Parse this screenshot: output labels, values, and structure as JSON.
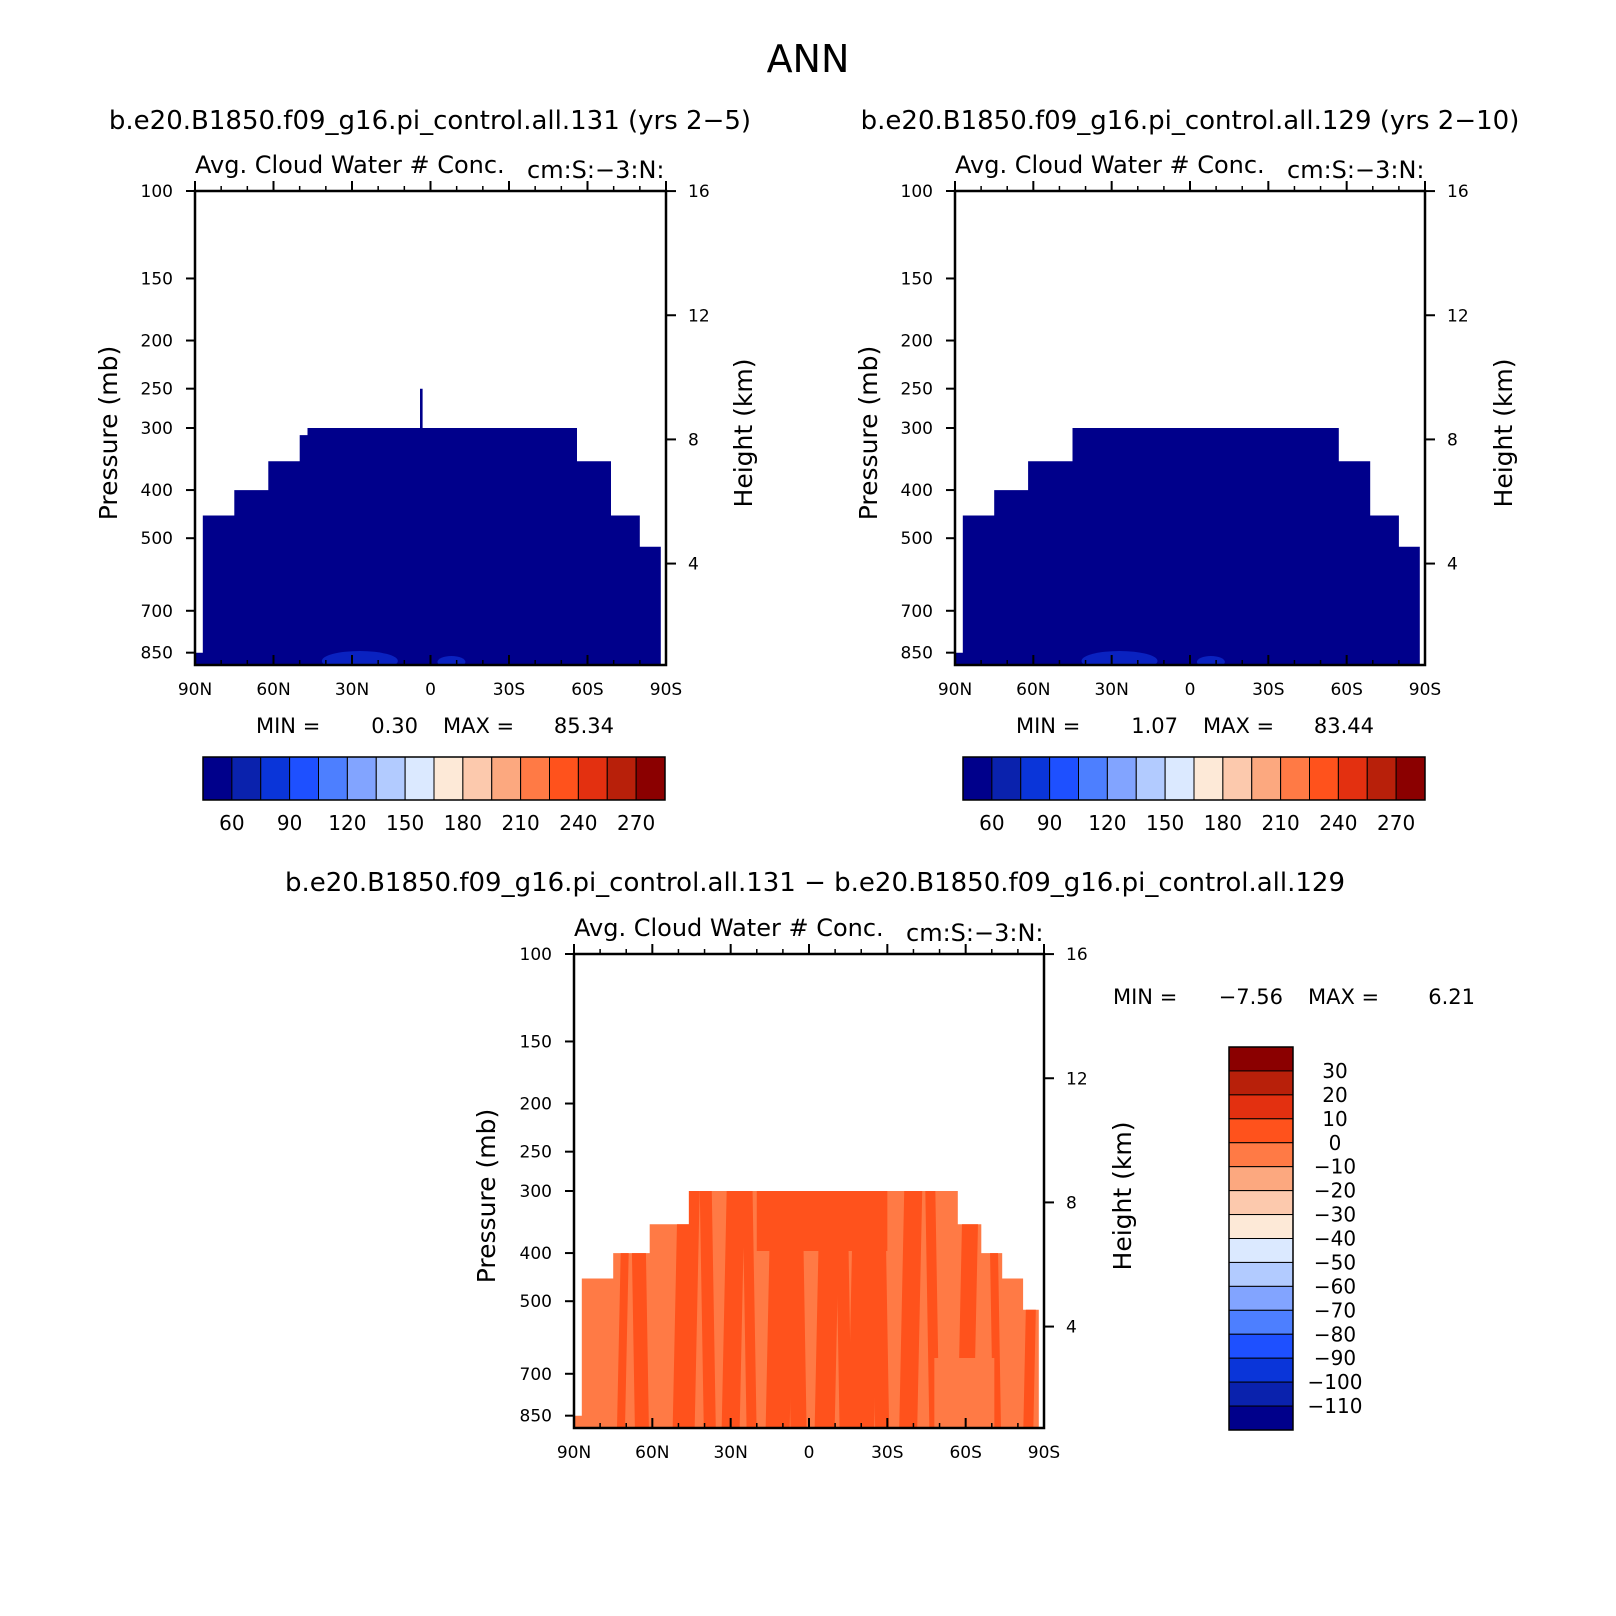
{
  "figure_title": "ANN",
  "colors": {
    "field": "#00008b",
    "field_light": "#0a22c0",
    "diff_base": "#ff7a45",
    "diff_strong": "#ff521c",
    "axis": "#000000"
  },
  "chart_data": [
    {
      "type": "heatmap",
      "case_title": "b.e20.B1850.f09_g16.pi_control.all.131 (yrs 2-5)",
      "title": "Avg. Cloud Water # Conc.",
      "units_label": "cm:S:-3:N:",
      "xlabel": "",
      "ylabel": "Pressure (mb)",
      "ylabel_right": "Height (km)",
      "x_ticks": [
        "90N",
        "60N",
        "30N",
        "0",
        "30S",
        "60S",
        "90S"
      ],
      "y_ticks": [
        "100",
        "150",
        "200",
        "250",
        "300",
        "400",
        "500",
        "700",
        "850"
      ],
      "y_ticks_right": [
        "16",
        "12",
        "8",
        "4"
      ],
      "ylim": [
        1000,
        100
      ],
      "xlim": [
        90,
        -90
      ],
      "min_label": "MIN =",
      "min_value": "0.30",
      "max_label": "MAX =",
      "max_value": "85.34",
      "field_top_pressure": [
        [
          90,
          850
        ],
        [
          87,
          450
        ],
        [
          75,
          400
        ],
        [
          62,
          350
        ],
        [
          50,
          310
        ],
        [
          47,
          300
        ],
        [
          45,
          300
        ],
        [
          5,
          300
        ],
        [
          4,
          250
        ],
        [
          3,
          300
        ],
        [
          -45,
          300
        ],
        [
          -56,
          350
        ],
        [
          -69,
          450
        ],
        [
          -80,
          520
        ],
        [
          -88,
          850
        ]
      ],
      "colorbar": {
        "orientation": "horizontal",
        "colors": [
          "#00008b",
          "#0a22ad",
          "#0a35d9",
          "#1e50ff",
          "#4d7fff",
          "#82a4ff",
          "#b2cbff",
          "#dbe9ff",
          "#fde9d7",
          "#fcc9ad",
          "#fca87f",
          "#ff7a45",
          "#ff521c",
          "#e33010",
          "#b8200a",
          "#8b0000"
        ],
        "labels": [
          "60",
          "90",
          "120",
          "150",
          "180",
          "210",
          "240",
          "270"
        ]
      }
    },
    {
      "type": "heatmap",
      "case_title": "b.e20.B1850.f09_g16.pi_control.all.129 (yrs 2-10)",
      "title": "Avg. Cloud Water # Conc.",
      "units_label": "cm:S:-3:N:",
      "xlabel": "",
      "ylabel": "Pressure (mb)",
      "ylabel_right": "Height (km)",
      "x_ticks": [
        "90N",
        "60N",
        "30N",
        "0",
        "30S",
        "60S",
        "90S"
      ],
      "y_ticks": [
        "100",
        "150",
        "200",
        "250",
        "300",
        "400",
        "500",
        "700",
        "850"
      ],
      "y_ticks_right": [
        "16",
        "12",
        "8",
        "4"
      ],
      "ylim": [
        1000,
        100
      ],
      "xlim": [
        90,
        -90
      ],
      "min_label": "MIN =",
      "min_value": "1.07",
      "max_label": "MAX =",
      "max_value": "83.44",
      "field_top_pressure": [
        [
          90,
          850
        ],
        [
          87,
          450
        ],
        [
          75,
          400
        ],
        [
          62,
          350
        ],
        [
          45,
          300
        ],
        [
          -38,
          300
        ],
        [
          -57,
          350
        ],
        [
          -69,
          450
        ],
        [
          -80,
          520
        ],
        [
          -88,
          850
        ]
      ],
      "colorbar": {
        "orientation": "horizontal",
        "colors": [
          "#00008b",
          "#0a22ad",
          "#0a35d9",
          "#1e50ff",
          "#4d7fff",
          "#82a4ff",
          "#b2cbff",
          "#dbe9ff",
          "#fde9d7",
          "#fcc9ad",
          "#fca87f",
          "#ff7a45",
          "#ff521c",
          "#e33010",
          "#b8200a",
          "#8b0000"
        ],
        "labels": [
          "60",
          "90",
          "120",
          "150",
          "180",
          "210",
          "240",
          "270"
        ]
      }
    },
    {
      "type": "heatmap",
      "case_title": "b.e20.B1850.f09_g16.pi_control.all.131 - b.e20.B1850.f09_g16.pi_control.all.129",
      "title": "Avg. Cloud Water # Conc.",
      "units_label": "cm:S:-3:N:",
      "xlabel": "",
      "ylabel": "Pressure (mb)",
      "ylabel_right": "Height (km)",
      "x_ticks": [
        "90N",
        "60N",
        "30N",
        "0",
        "30S",
        "60S",
        "90S"
      ],
      "y_ticks": [
        "100",
        "150",
        "200",
        "250",
        "300",
        "400",
        "500",
        "700",
        "850"
      ],
      "y_ticks_right": [
        "16",
        "12",
        "8",
        "4"
      ],
      "ylim": [
        1000,
        100
      ],
      "xlim": [
        90,
        -90
      ],
      "min_label": "MIN =",
      "min_value": "-7.56",
      "max_label": "MAX =",
      "max_value": "6.21",
      "field_top_pressure": [
        [
          90,
          850
        ],
        [
          87,
          450
        ],
        [
          75,
          400
        ],
        [
          61,
          350
        ],
        [
          46,
          300
        ],
        [
          -39,
          300
        ],
        [
          -57,
          350
        ],
        [
          -66,
          400
        ],
        [
          -74,
          450
        ],
        [
          -82,
          520
        ],
        [
          -88,
          850
        ]
      ],
      "colorbar": {
        "orientation": "vertical",
        "colors": [
          "#8b0000",
          "#b8200a",
          "#e33010",
          "#ff521c",
          "#ff7a45",
          "#fca87f",
          "#fcc9ad",
          "#fde9d7",
          "#dbe9ff",
          "#b2cbff",
          "#82a4ff",
          "#4d7fff",
          "#1e50ff",
          "#0a35d9",
          "#0a22ad",
          "#00008b"
        ],
        "labels": [
          "30",
          "20",
          "10",
          "0",
          "-10",
          "-20",
          "-30",
          "-40",
          "-50",
          "-60",
          "-70",
          "-80",
          "-90",
          "-100",
          "-110"
        ]
      }
    }
  ]
}
